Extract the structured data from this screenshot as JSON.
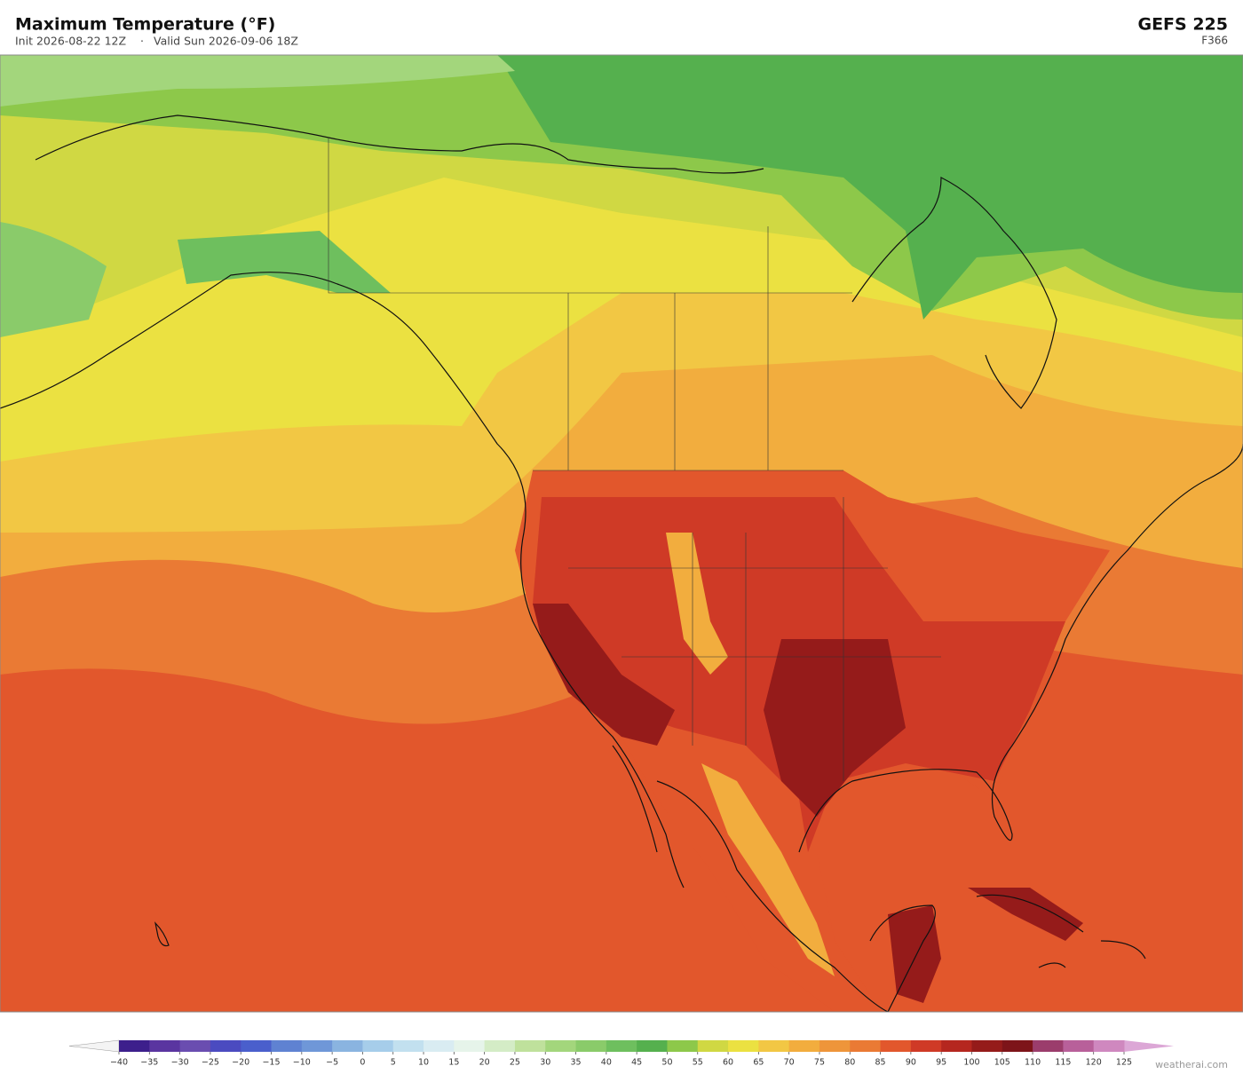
{
  "header": {
    "title": "Maximum Temperature  (°F)",
    "init": "Init 2026-08-22 12Z",
    "separator": "·",
    "valid": "Valid Sun 2026-09-06 18Z",
    "model": "GEFS  225",
    "forecast_hour": "F366"
  },
  "colorbar": {
    "ticks": [
      {
        "value": -40,
        "label": "−40"
      },
      {
        "value": -35,
        "label": "−35"
      },
      {
        "value": -30,
        "label": "−30"
      },
      {
        "value": -25,
        "label": "−25"
      },
      {
        "value": -20,
        "label": "−20"
      },
      {
        "value": -15,
        "label": "−15"
      },
      {
        "value": -10,
        "label": "−10"
      },
      {
        "value": -5,
        "label": "−5"
      },
      0,
      5,
      10,
      15,
      20,
      25,
      30,
      35,
      40,
      45,
      50,
      55,
      60,
      65,
      70,
      75,
      80,
      85,
      90,
      95,
      100,
      105,
      110,
      115,
      120,
      125
    ],
    "colors": [
      "#3d1f8c",
      "#5a35a0",
      "#6a4db0",
      "#4b4bc0",
      "#4a5fcc",
      "#5f82d2",
      "#6f97d8",
      "#8ab4e0",
      "#a6cdea",
      "#c2e0ef",
      "#d9ecf2",
      "#e6f4ea",
      "#d4ecc6",
      "#bfe19c",
      "#a3d67c",
      "#8acb6a",
      "#6ebf5e",
      "#55b04e",
      "#8dc84a",
      "#d0d843",
      "#ebe141",
      "#f2c744",
      "#f2ad3e",
      "#ee953a",
      "#ea7a34",
      "#e2572c",
      "#cf3a26",
      "#b5271f",
      "#951b1a",
      "#7d1419",
      "#9b3d6c",
      "#b8609a",
      "#cf88bf"
    ],
    "under_color": "#f4f4f4",
    "over_color": "#dca7d6"
  },
  "credit": "weatherai.com"
}
